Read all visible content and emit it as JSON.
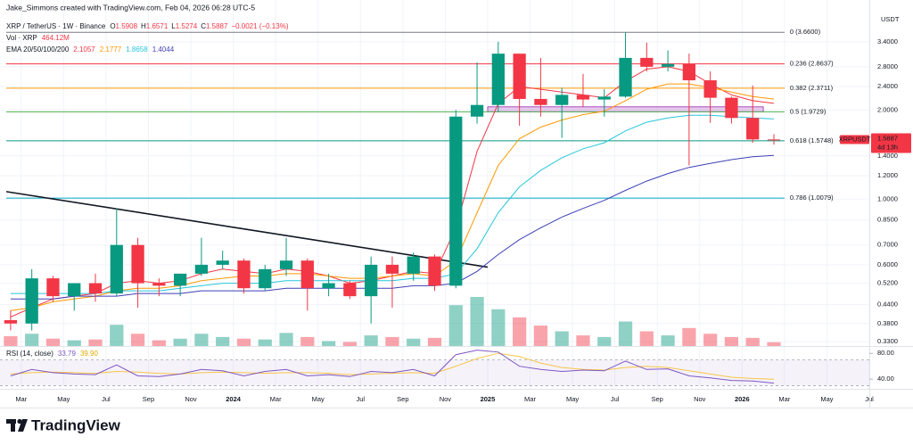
{
  "chart_data": {
    "type": "candlestick",
    "credit": "Jake_Simmons created with TradingView.com, Feb 04, 2026 06:28 UTC-5",
    "title": "XRP / TetherUS · 1W · Binance",
    "ohlc_labels": [
      "O",
      "H",
      "L",
      "C"
    ],
    "change": "−0.0021 (−0.13%)",
    "volume_label": "Vol · XRP",
    "ema_label": "EMA 20/50/100/200",
    "currency": "USDT",
    "symbol": "XRPUSDT",
    "countdown": "4d 13h",
    "brand": "TradingView",
    "log_scale": true,
    "grid": true,
    "up_color": "#089981",
    "down_color": "#f23645",
    "xlim": [
      "2023-02",
      "2026-07"
    ],
    "ylim": [
      0.319,
      4.04
    ],
    "x": [
      "2023-02",
      "2023-03",
      "2023-04",
      "2023-05",
      "2023-06",
      "2023-07",
      "2023-08",
      "2023-09",
      "2023-10",
      "2023-11",
      "2023-12",
      "2024-01",
      "2024-02",
      "2024-03",
      "2024-04",
      "2024-05",
      "2024-06",
      "2024-07",
      "2024-08",
      "2024-09",
      "2024-10",
      "2024-11",
      "2024-12",
      "2025-01",
      "2025-02",
      "2025-03",
      "2025-04",
      "2025-05",
      "2025-06",
      "2025-07",
      "2025-08",
      "2025-09",
      "2025-10",
      "2025-11",
      "2025-12",
      "2026-01",
      "2026-02"
    ],
    "open": [
      0.39,
      0.38,
      0.54,
      0.47,
      0.52,
      0.48,
      0.7,
      0.52,
      0.51,
      0.56,
      0.6,
      0.62,
      0.5,
      0.58,
      0.62,
      0.5,
      0.52,
      0.47,
      0.6,
      0.56,
      0.64,
      0.51,
      1.9,
      2.08,
      3.1,
      2.18,
      2.08,
      2.25,
      2.17,
      2.22,
      3.0,
      2.8,
      2.86,
      2.52,
      2.2,
      1.88,
      1.5908
    ],
    "high": [
      0.42,
      0.58,
      0.55,
      0.52,
      0.56,
      0.93,
      0.74,
      0.54,
      0.56,
      0.74,
      0.67,
      0.63,
      0.6,
      0.74,
      0.63,
      0.56,
      0.53,
      0.64,
      0.64,
      0.66,
      0.65,
      2.0,
      2.9,
      3.4,
      3.1,
      3.0,
      2.38,
      2.65,
      2.35,
      3.66,
      3.38,
      3.18,
      3.1,
      2.7,
      2.22,
      2.42,
      1.6571
    ],
    "low": [
      0.36,
      0.36,
      0.45,
      0.42,
      0.45,
      0.47,
      0.43,
      0.47,
      0.47,
      0.55,
      0.58,
      0.48,
      0.49,
      0.55,
      0.42,
      0.47,
      0.46,
      0.38,
      0.43,
      0.53,
      0.49,
      0.5,
      1.8,
      1.97,
      1.77,
      1.9,
      1.61,
      2.05,
      1.9,
      2.2,
      2.7,
      2.7,
      1.3,
      1.81,
      1.8,
      1.55,
      1.5274
    ],
    "close": [
      0.38,
      0.54,
      0.47,
      0.52,
      0.48,
      0.7,
      0.52,
      0.51,
      0.56,
      0.6,
      0.62,
      0.5,
      0.58,
      0.62,
      0.5,
      0.52,
      0.47,
      0.6,
      0.56,
      0.64,
      0.51,
      1.9,
      2.08,
      3.1,
      2.18,
      2.08,
      2.25,
      2.17,
      2.22,
      3.0,
      2.8,
      2.86,
      2.52,
      2.2,
      1.88,
      1.5908,
      1.5887
    ],
    "volume": {
      "values": [
        1200,
        1500,
        900,
        700,
        800,
        2600,
        1500,
        700,
        900,
        1500,
        1100,
        900,
        800,
        1600,
        1100,
        600,
        500,
        1300,
        1100,
        900,
        1000,
        5000,
        6000,
        4500,
        3500,
        2500,
        1800,
        1300,
        1100,
        3000,
        1800,
        1300,
        2200,
        1500,
        1100,
        1000,
        464.12
      ],
      "value_labels": [
        null,
        null,
        null,
        null,
        null,
        null,
        null,
        null,
        null,
        null,
        null,
        null,
        null,
        null,
        null,
        null,
        null,
        null,
        null,
        null,
        null,
        null,
        null,
        null,
        null,
        null,
        null,
        null,
        null,
        null,
        null,
        null,
        null,
        null,
        null,
        null,
        "464.12M"
      ]
    },
    "ema": [
      {
        "color": "#f23645",
        "values": [
          0.4,
          0.43,
          0.46,
          0.47,
          0.48,
          0.52,
          0.53,
          0.52,
          0.53,
          0.56,
          0.58,
          0.57,
          0.56,
          0.58,
          0.57,
          0.55,
          0.52,
          0.53,
          0.55,
          0.57,
          0.56,
          0.8,
          1.45,
          2.1,
          2.4,
          2.35,
          2.3,
          2.25,
          2.2,
          2.5,
          2.75,
          2.8,
          2.7,
          2.45,
          2.25,
          2.15,
          2.1057
        ]
      },
      {
        "color": "#ff9800",
        "values": [
          0.42,
          0.43,
          0.45,
          0.46,
          0.47,
          0.49,
          0.5,
          0.5,
          0.51,
          0.53,
          0.54,
          0.55,
          0.55,
          0.56,
          0.56,
          0.55,
          0.54,
          0.54,
          0.55,
          0.56,
          0.55,
          0.62,
          0.9,
          1.3,
          1.6,
          1.75,
          1.85,
          1.93,
          1.98,
          2.15,
          2.35,
          2.45,
          2.45,
          2.38,
          2.3,
          2.22,
          2.1777
        ]
      },
      {
        "color": "#26c6da",
        "values": [
          0.48,
          0.48,
          0.48,
          0.48,
          0.48,
          0.49,
          0.49,
          0.49,
          0.5,
          0.51,
          0.52,
          0.52,
          0.52,
          0.53,
          0.53,
          0.53,
          0.53,
          0.53,
          0.53,
          0.54,
          0.54,
          0.56,
          0.68,
          0.9,
          1.1,
          1.25,
          1.38,
          1.48,
          1.55,
          1.7,
          1.82,
          1.88,
          1.92,
          1.92,
          1.9,
          1.88,
          1.8658
        ]
      },
      {
        "color": "#3f3fb8",
        "values": [
          0.46,
          0.46,
          0.46,
          0.47,
          0.47,
          0.47,
          0.48,
          0.48,
          0.48,
          0.49,
          0.49,
          0.49,
          0.49,
          0.5,
          0.5,
          0.5,
          0.5,
          0.5,
          0.5,
          0.51,
          0.51,
          0.52,
          0.57,
          0.65,
          0.73,
          0.8,
          0.87,
          0.93,
          0.99,
          1.07,
          1.15,
          1.22,
          1.28,
          1.32,
          1.36,
          1.39,
          1.4044
        ]
      }
    ],
    "fib": [
      {
        "value": 3.66,
        "label": "0 (3.6600)",
        "color": "#787b86"
      },
      {
        "value": 2.8637,
        "label": "0.236 (2.8637)",
        "color": "#f23645"
      },
      {
        "value": 2.3711,
        "label": "0.382 (2.3711)",
        "color": "#ff9800"
      },
      {
        "value": 1.9729,
        "label": "0.5 (1.9729)",
        "color": "#4caf50"
      },
      {
        "value": 1.5748,
        "label": "0.618 (1.5748)",
        "color": "#089981"
      },
      {
        "value": 1.0079,
        "label": "0.786 (1.0079)",
        "color": "#00acc1"
      }
    ],
    "fib_end": "2026-02",
    "zone": {
      "x": [
        "2025-01",
        "2026-02"
      ],
      "y": [
        1.9729,
        2.05
      ],
      "color": "#ce93d8"
    },
    "trendline": {
      "x": [
        "2023-02",
        "2024-12"
      ],
      "y": [
        1.06,
        0.589
      ],
      "color": "#131722"
    },
    "yticks": [
      {
        "value": 3.4,
        "label": "3.4000"
      },
      {
        "value": 2.8,
        "label": "2.8000"
      },
      {
        "value": 2.4,
        "label": "2.4000"
      },
      {
        "value": 2.0,
        "label": "2.0000"
      },
      {
        "value": 1.4,
        "label": "1.4000"
      },
      {
        "value": 1.2,
        "label": "1.2000"
      },
      {
        "value": 1.0,
        "label": "1.0000"
      },
      {
        "value": 0.85,
        "label": "0.8500"
      },
      {
        "value": 0.7,
        "label": "0.7000"
      },
      {
        "value": 0.6,
        "label": "0.6000"
      },
      {
        "value": 0.52,
        "label": "0.5200"
      },
      {
        "value": 0.44,
        "label": "0.4400"
      },
      {
        "value": 0.38,
        "label": "0.3800"
      },
      {
        "value": 0.33,
        "label": "0.3300"
      }
    ],
    "xticks": [
      {
        "value": "2023-03",
        "label": "Mar"
      },
      {
        "value": "2023-05",
        "label": "May"
      },
      {
        "value": "2023-07",
        "label": "Jul"
      },
      {
        "value": "2023-09",
        "label": "Sep"
      },
      {
        "value": "2023-11",
        "label": "Nov"
      },
      {
        "value": "2024-01",
        "label": "2024"
      },
      {
        "value": "2024-03",
        "label": "Mar"
      },
      {
        "value": "2024-05",
        "label": "May"
      },
      {
        "value": "2024-07",
        "label": "Jul"
      },
      {
        "value": "2024-09",
        "label": "Sep"
      },
      {
        "value": "2024-11",
        "label": "Nov"
      },
      {
        "value": "2025-01",
        "label": "2025"
      },
      {
        "value": "2025-03",
        "label": "Mar"
      },
      {
        "value": "2025-05",
        "label": "May"
      },
      {
        "value": "2025-07",
        "label": "Jul"
      },
      {
        "value": "2025-09",
        "label": "Sep"
      },
      {
        "value": "2025-11",
        "label": "Nov"
      },
      {
        "value": "2026-01",
        "label": "2026"
      },
      {
        "value": "2026-03",
        "label": "Mar"
      },
      {
        "value": "2026-05",
        "label": "May"
      },
      {
        "value": "2026-07",
        "label": "Jul"
      }
    ],
    "rsi": {
      "label": "RSI (14, close)",
      "color": "#7e57c2",
      "ylim": [
        25,
        90
      ],
      "yticks": [
        {
          "value": 80,
          "label": "80.00"
        },
        {
          "value": 40,
          "label": "40.00"
        }
      ],
      "band": [
        30,
        70
      ],
      "values": [
        45,
        55,
        50,
        48,
        47,
        62,
        45,
        44,
        48,
        55,
        53,
        45,
        52,
        55,
        45,
        47,
        44,
        52,
        50,
        55,
        45,
        78,
        85,
        82,
        60,
        55,
        52,
        54,
        53,
        68,
        55,
        56,
        45,
        42,
        38,
        37,
        33.79
      ],
      "ma": {
        "color": "#f7c548",
        "values": [
          48,
          50,
          51,
          50,
          49,
          52,
          51,
          49,
          48,
          50,
          51,
          50,
          49,
          50,
          50,
          49,
          47,
          48,
          49,
          50,
          49,
          60,
          72,
          80,
          75,
          65,
          58,
          55,
          54,
          58,
          60,
          58,
          53,
          48,
          43,
          41,
          39.9
        ],
        "value_labels": [
          null,
          null,
          null,
          null,
          null,
          null,
          null,
          null,
          null,
          null,
          null,
          null,
          null,
          null,
          null,
          null,
          null,
          null,
          null,
          null,
          null,
          null,
          null,
          null,
          null,
          null,
          null,
          null,
          null,
          null,
          null,
          null,
          null,
          null,
          null,
          null,
          "39.90"
        ]
      }
    }
  }
}
